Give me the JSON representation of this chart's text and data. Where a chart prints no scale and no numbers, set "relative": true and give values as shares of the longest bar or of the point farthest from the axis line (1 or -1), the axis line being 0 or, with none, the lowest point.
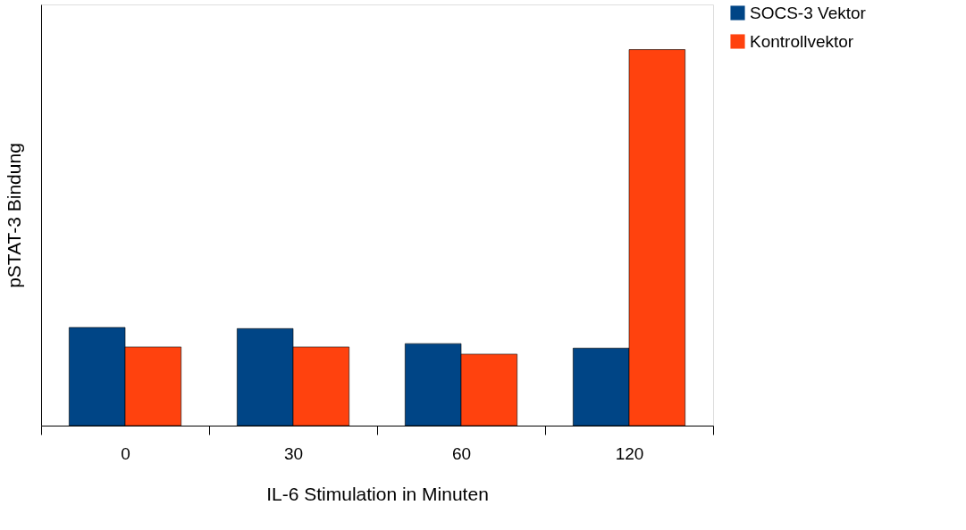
{
  "chart_data": {
    "type": "bar",
    "relative": true,
    "xlabel": "IL-6 Stimulation in Minuten",
    "ylabel": "pSTAT-3 Bindung",
    "categories": [
      "0",
      "30",
      "60",
      "120"
    ],
    "series": [
      {
        "name": "SOCS-3 Vektor",
        "color": "#004586",
        "values": [
          0.261,
          0.258,
          0.218,
          0.206
        ]
      },
      {
        "name": "Kontrollvektor",
        "color": "#ff420e",
        "values": [
          0.209,
          0.209,
          0.19,
          1
        ]
      }
    ],
    "legend": "right",
    "grid": false
  }
}
